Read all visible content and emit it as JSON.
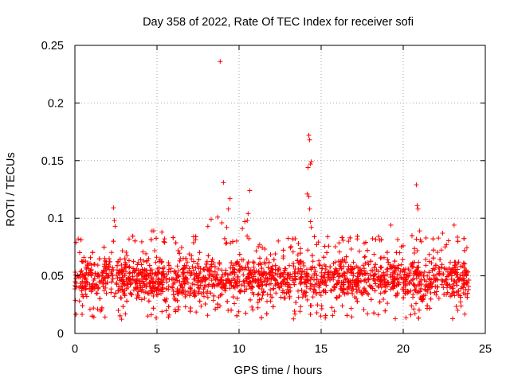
{
  "chart_data": {
    "type": "scatter",
    "title": "Day 358 of 2022, Rate Of TEC Index for receiver sofi",
    "xlabel": "GPS time / hours",
    "ylabel": "ROTI / TECUs",
    "xlim": [
      0,
      25
    ],
    "ylim": [
      0,
      0.25
    ],
    "x_ticks": [
      0,
      5,
      10,
      15,
      20,
      25
    ],
    "x_tick_labels": [
      "0",
      "5",
      "10",
      "15",
      "20",
      "25"
    ],
    "y_ticks": [
      0,
      0.05,
      0.1,
      0.15,
      0.2,
      0.25
    ],
    "y_tick_labels": [
      "0",
      "0.05",
      "0.1",
      "0.15",
      "0.2",
      "0.25"
    ],
    "grid": true,
    "marker": "+",
    "marker_color": "#ff0000",
    "series": [
      {
        "name": "ROTI",
        "band": {
          "x_start": 0.0,
          "x_end": 24.0,
          "typical_min": 0.02,
          "typical_max": 0.075,
          "median": 0.042
        },
        "outliers": [
          [
            8.85,
            0.236
          ],
          [
            9.05,
            0.131
          ],
          [
            8.3,
            0.099
          ],
          [
            8.7,
            0.101
          ],
          [
            8.95,
            0.096
          ],
          [
            9.35,
            0.108
          ],
          [
            9.45,
            0.117
          ],
          [
            9.25,
            0.092
          ],
          [
            10.65,
            0.124
          ],
          [
            10.55,
            0.104
          ],
          [
            10.35,
            0.097
          ],
          [
            10.5,
            0.098
          ],
          [
            2.35,
            0.109
          ],
          [
            2.4,
            0.098
          ],
          [
            2.45,
            0.093
          ],
          [
            14.25,
            0.172
          ],
          [
            14.3,
            0.168
          ],
          [
            14.35,
            0.147
          ],
          [
            14.4,
            0.149
          ],
          [
            14.2,
            0.144
          ],
          [
            14.15,
            0.121
          ],
          [
            14.25,
            0.119
          ],
          [
            14.3,
            0.108
          ],
          [
            14.35,
            0.097
          ],
          [
            14.4,
            0.092
          ],
          [
            20.8,
            0.129
          ],
          [
            20.85,
            0.111
          ],
          [
            20.9,
            0.108
          ],
          [
            21.0,
            0.089
          ],
          [
            19.25,
            0.094
          ],
          [
            23.1,
            0.094
          ],
          [
            4.7,
            0.089
          ],
          [
            4.8,
            0.089
          ],
          [
            5.3,
            0.088
          ],
          [
            0.2,
            0.082
          ],
          [
            8.1,
            0.093
          ],
          [
            10.2,
            0.091
          ],
          [
            15.4,
            0.084
          ],
          [
            17.2,
            0.082
          ],
          [
            22.4,
            0.087
          ]
        ]
      }
    ]
  }
}
